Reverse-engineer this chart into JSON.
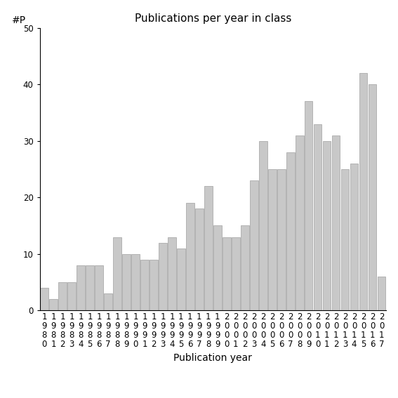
{
  "title": "Publications per year in class",
  "xlabel": "Publication year",
  "ylabel": "#P",
  "years": [
    1980,
    1981,
    1982,
    1983,
    1984,
    1985,
    1986,
    1987,
    1988,
    1989,
    1990,
    1991,
    1992,
    1993,
    1994,
    1995,
    1996,
    1997,
    1998,
    1999,
    2000,
    2001,
    2002,
    2003,
    2004,
    2005,
    2006,
    2007,
    2008,
    2009,
    2010,
    2011,
    2012,
    2013,
    2014,
    2015,
    2016,
    2017
  ],
  "values": [
    4,
    2,
    5,
    5,
    8,
    8,
    8,
    3,
    13,
    10,
    10,
    9,
    9,
    12,
    13,
    11,
    19,
    18,
    22,
    15,
    13,
    13,
    15,
    23,
    30,
    25,
    25,
    28,
    31,
    37,
    33,
    30,
    31,
    25,
    26,
    42,
    40,
    6
  ],
  "ylim": [
    0,
    50
  ],
  "yticks": [
    0,
    10,
    20,
    30,
    40,
    50
  ],
  "bar_color": "#c8c8c8",
  "bar_edge_color": "#a0a0a0",
  "background_color": "#ffffff",
  "title_fontsize": 11,
  "label_fontsize": 10,
  "tick_fontsize": 8.5
}
